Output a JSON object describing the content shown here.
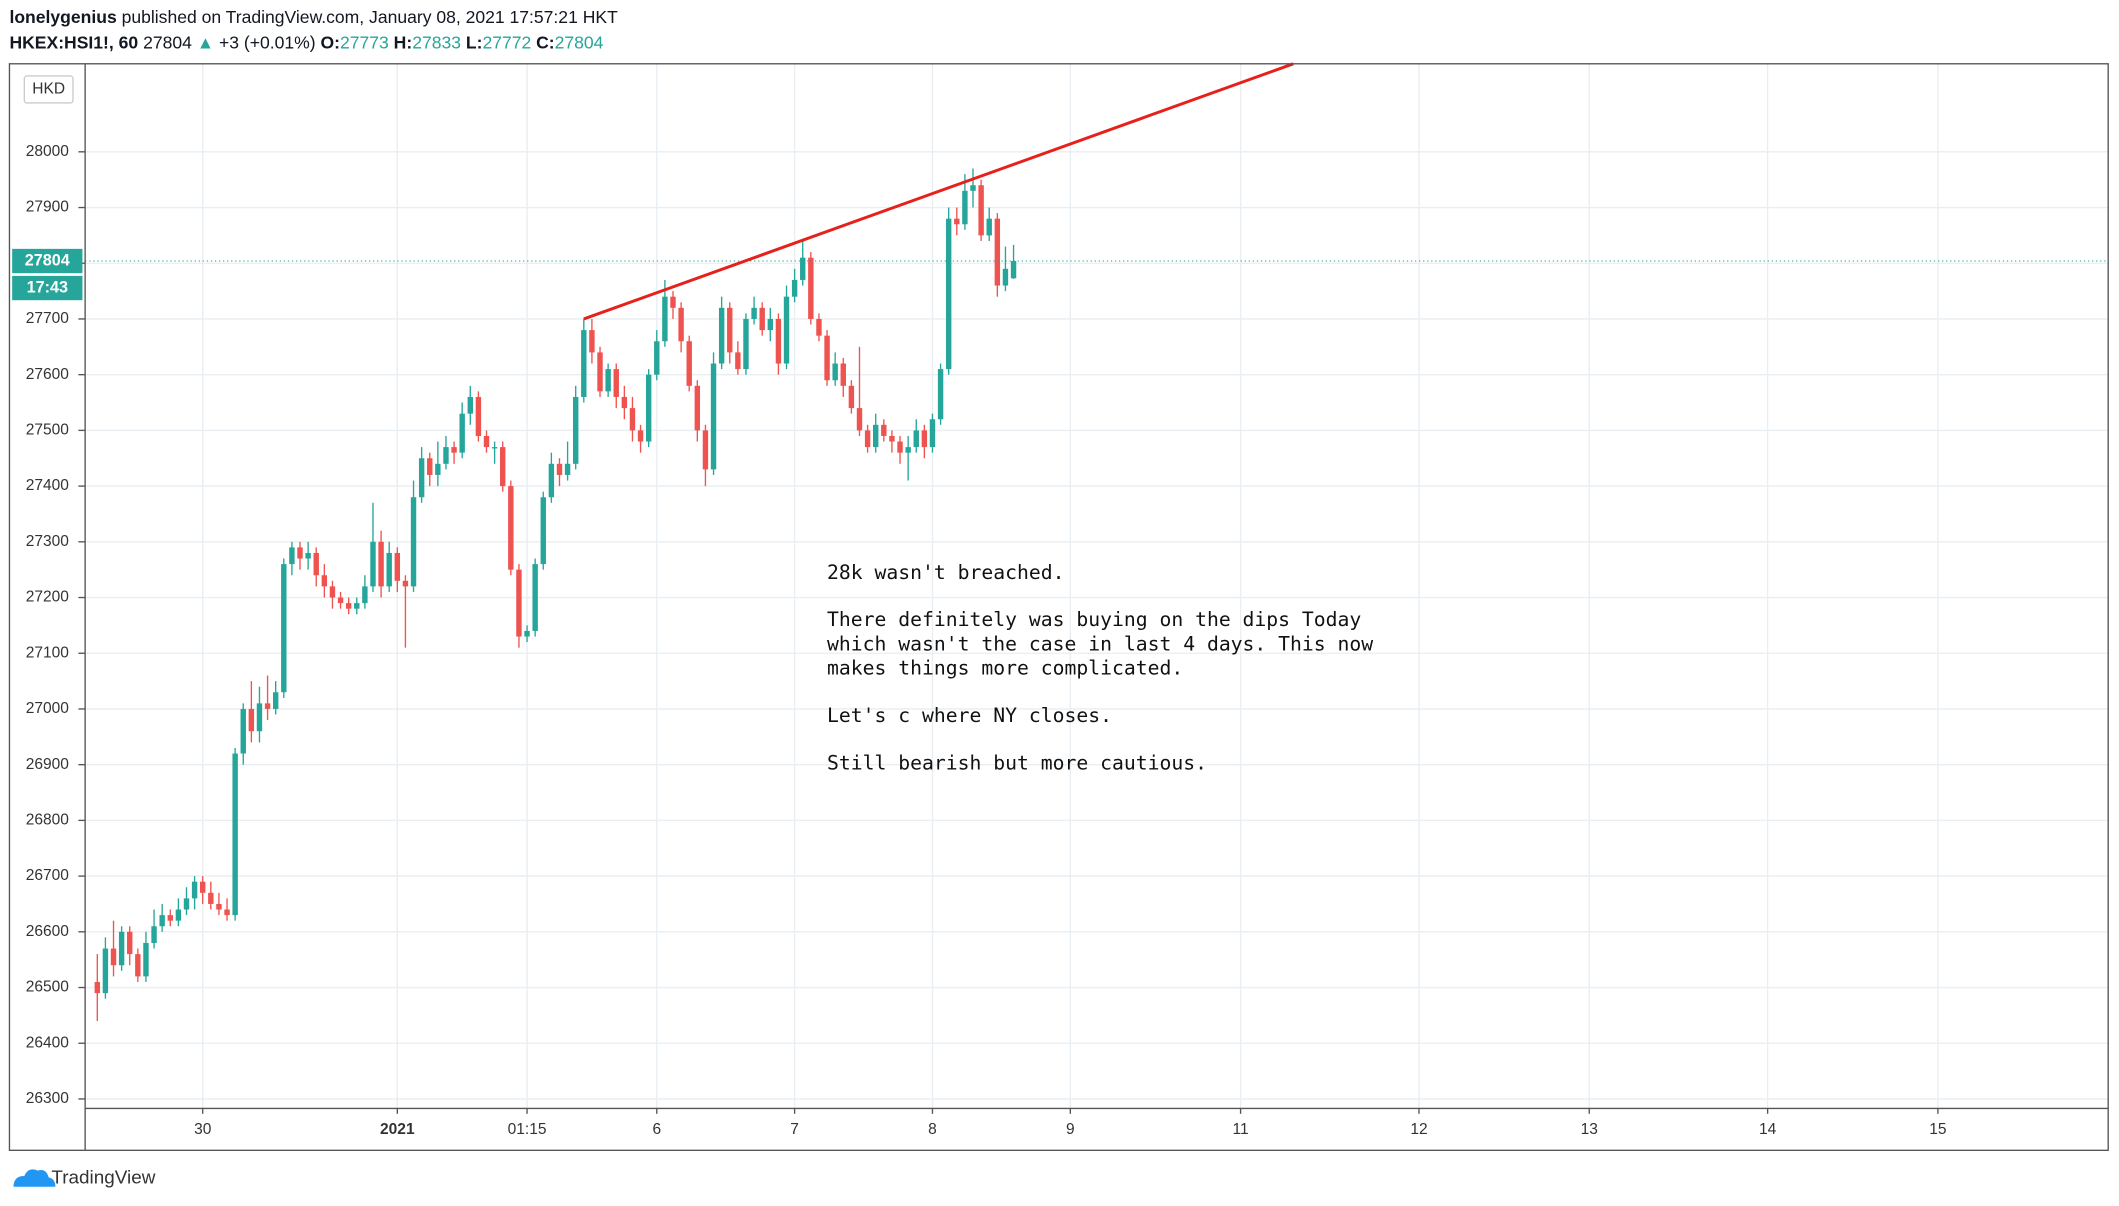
{
  "header": {
    "author": "lonelygenius",
    "published": "published on TradingView.com, January 08, 2021 17:57:21 HKT",
    "symbol": "HKEX:HSI1!, 60",
    "last": "27804",
    "arrow": "▲",
    "change": "+3 (+0.01%)",
    "o_label": "O:",
    "o": "27773",
    "h_label": "H:",
    "h": "27833",
    "l_label": "L:",
    "l": "27772",
    "c_label": "C:",
    "c": "27804"
  },
  "footer": {
    "brand": "TradingView"
  },
  "chart_data": {
    "type": "candlestick",
    "currency": "HKD",
    "up_color": "#26a69a",
    "down_color": "#ef5350",
    "grid": true,
    "ylim": [
      26283,
      28158
    ],
    "yticks": [
      26300,
      26400,
      26500,
      26600,
      26700,
      26800,
      26900,
      27000,
      27100,
      27200,
      27300,
      27400,
      27500,
      27600,
      27700,
      27800,
      27900,
      28000
    ],
    "xlim": [
      -1.5,
      248
    ],
    "xticks": [
      {
        "value": 13,
        "label": "30"
      },
      {
        "value": 37,
        "label": "2021"
      },
      {
        "value": 53,
        "label": "01:15"
      },
      {
        "value": 69,
        "label": "6"
      },
      {
        "value": 86,
        "label": "7"
      },
      {
        "value": 103,
        "label": "8"
      },
      {
        "value": 120,
        "label": "9"
      },
      {
        "value": 141,
        "label": "11"
      },
      {
        "value": 163,
        "label": "12"
      },
      {
        "value": 184,
        "label": "13"
      },
      {
        "value": 206,
        "label": "14"
      },
      {
        "value": 227,
        "label": "15"
      }
    ],
    "last_price": 27804,
    "countdown": "17:43",
    "trendline": {
      "x": [
        60,
        147.5
      ],
      "y": [
        27700,
        28158
      ],
      "color": "#e8201c"
    },
    "annotation": [
      [
        "28k wasn't breached."
      ],
      [
        "There definitely was buying on the dips Today",
        "which wasn't the case in last 4 days. This now",
        "makes things more complicated."
      ],
      [
        "Let's c where NY closes."
      ],
      [
        "Still bearish but more cautious."
      ]
    ],
    "candles": [
      [
        26510,
        26560,
        26440,
        26490
      ],
      [
        26490,
        26590,
        26480,
        26570
      ],
      [
        26570,
        26620,
        26520,
        26540
      ],
      [
        26540,
        26610,
        26530,
        26600
      ],
      [
        26600,
        26610,
        26540,
        26560
      ],
      [
        26560,
        26570,
        26510,
        26520
      ],
      [
        26520,
        26600,
        26510,
        26580
      ],
      [
        26580,
        26640,
        26570,
        26610
      ],
      [
        26610,
        26650,
        26600,
        26630
      ],
      [
        26630,
        26640,
        26610,
        26620
      ],
      [
        26620,
        26660,
        26610,
        26640
      ],
      [
        26640,
        26680,
        26630,
        26660
      ],
      [
        26660,
        26700,
        26640,
        26690
      ],
      [
        26690,
        26700,
        26650,
        26670
      ],
      [
        26670,
        26690,
        26640,
        26650
      ],
      [
        26650,
        26670,
        26630,
        26640
      ],
      [
        26640,
        26660,
        26620,
        26630
      ],
      [
        26630,
        26930,
        26620,
        26920
      ],
      [
        26920,
        27010,
        26900,
        27000
      ],
      [
        27000,
        27050,
        26940,
        26960
      ],
      [
        26960,
        27040,
        26940,
        27010
      ],
      [
        27010,
        27060,
        26980,
        27000
      ],
      [
        27000,
        27050,
        26990,
        27030
      ],
      [
        27030,
        27270,
        27020,
        27260
      ],
      [
        27260,
        27300,
        27240,
        27290
      ],
      [
        27290,
        27300,
        27250,
        27270
      ],
      [
        27270,
        27300,
        27250,
        27280
      ],
      [
        27280,
        27290,
        27220,
        27240
      ],
      [
        27240,
        27260,
        27200,
        27220
      ],
      [
        27220,
        27230,
        27180,
        27200
      ],
      [
        27200,
        27210,
        27180,
        27190
      ],
      [
        27190,
        27200,
        27170,
        27180
      ],
      [
        27180,
        27200,
        27170,
        27190
      ],
      [
        27190,
        27240,
        27180,
        27220
      ],
      [
        27220,
        27370,
        27210,
        27300
      ],
      [
        27300,
        27320,
        27200,
        27220
      ],
      [
        27220,
        27300,
        27210,
        27280
      ],
      [
        27280,
        27290,
        27210,
        27230
      ],
      [
        27230,
        27240,
        27110,
        27220
      ],
      [
        27220,
        27410,
        27210,
        27380
      ],
      [
        27380,
        27470,
        27370,
        27450
      ],
      [
        27450,
        27460,
        27400,
        27420
      ],
      [
        27420,
        27480,
        27400,
        27440
      ],
      [
        27440,
        27490,
        27430,
        27470
      ],
      [
        27470,
        27480,
        27440,
        27460
      ],
      [
        27460,
        27550,
        27450,
        27530
      ],
      [
        27530,
        27580,
        27510,
        27560
      ],
      [
        27560,
        27570,
        27480,
        27490
      ],
      [
        27490,
        27500,
        27460,
        27470
      ],
      [
        27470,
        27480,
        27440,
        27470
      ],
      [
        27470,
        27480,
        27390,
        27400
      ],
      [
        27400,
        27410,
        27240,
        27250
      ],
      [
        27250,
        27260,
        27110,
        27130
      ],
      [
        27130,
        27150,
        27120,
        27140
      ],
      [
        27140,
        27270,
        27130,
        27260
      ],
      [
        27260,
        27390,
        27250,
        27380
      ],
      [
        27380,
        27460,
        27370,
        27440
      ],
      [
        27440,
        27450,
        27400,
        27420
      ],
      [
        27420,
        27480,
        27410,
        27440
      ],
      [
        27440,
        27580,
        27430,
        27560
      ],
      [
        27560,
        27700,
        27550,
        27680
      ],
      [
        27680,
        27700,
        27620,
        27640
      ],
      [
        27640,
        27650,
        27560,
        27570
      ],
      [
        27570,
        27620,
        27560,
        27610
      ],
      [
        27610,
        27620,
        27540,
        27560
      ],
      [
        27560,
        27580,
        27520,
        27540
      ],
      [
        27540,
        27560,
        27480,
        27500
      ],
      [
        27500,
        27510,
        27460,
        27480
      ],
      [
        27480,
        27610,
        27470,
        27600
      ],
      [
        27600,
        27680,
        27590,
        27660
      ],
      [
        27660,
        27770,
        27650,
        27740
      ],
      [
        27740,
        27750,
        27700,
        27720
      ],
      [
        27720,
        27730,
        27640,
        27660
      ],
      [
        27660,
        27670,
        27570,
        27580
      ],
      [
        27580,
        27590,
        27480,
        27500
      ],
      [
        27500,
        27510,
        27400,
        27430
      ],
      [
        27430,
        27640,
        27420,
        27620
      ],
      [
        27620,
        27740,
        27610,
        27720
      ],
      [
        27720,
        27730,
        27620,
        27640
      ],
      [
        27640,
        27660,
        27600,
        27610
      ],
      [
        27610,
        27710,
        27600,
        27700
      ],
      [
        27700,
        27740,
        27690,
        27720
      ],
      [
        27720,
        27730,
        27670,
        27680
      ],
      [
        27680,
        27720,
        27660,
        27700
      ],
      [
        27700,
        27710,
        27600,
        27620
      ],
      [
        27620,
        27760,
        27610,
        27740
      ],
      [
        27740,
        27790,
        27730,
        27770
      ],
      [
        27770,
        27840,
        27760,
        27810
      ],
      [
        27810,
        27820,
        27690,
        27700
      ],
      [
        27700,
        27710,
        27660,
        27670
      ],
      [
        27670,
        27680,
        27580,
        27590
      ],
      [
        27590,
        27640,
        27580,
        27620
      ],
      [
        27620,
        27630,
        27560,
        27580
      ],
      [
        27580,
        27590,
        27530,
        27540
      ],
      [
        27540,
        27650,
        27490,
        27500
      ],
      [
        27500,
        27510,
        27460,
        27470
      ],
      [
        27470,
        27530,
        27460,
        27510
      ],
      [
        27510,
        27520,
        27480,
        27490
      ],
      [
        27490,
        27500,
        27460,
        27480
      ],
      [
        27480,
        27490,
        27440,
        27460
      ],
      [
        27460,
        27490,
        27410,
        27470
      ],
      [
        27470,
        27520,
        27460,
        27500
      ],
      [
        27500,
        27510,
        27450,
        27470
      ],
      [
        27470,
        27530,
        27460,
        27520
      ],
      [
        27520,
        27620,
        27510,
        27610
      ],
      [
        27610,
        27900,
        27600,
        27880
      ],
      [
        27880,
        27900,
        27850,
        27870
      ],
      [
        27870,
        27960,
        27860,
        27930
      ],
      [
        27930,
        27970,
        27900,
        27940
      ],
      [
        27940,
        27950,
        27840,
        27850
      ],
      [
        27850,
        27900,
        27840,
        27880
      ],
      [
        27880,
        27890,
        27740,
        27760
      ],
      [
        27760,
        27830,
        27750,
        27790
      ],
      [
        27773,
        27833,
        27772,
        27804
      ]
    ]
  }
}
